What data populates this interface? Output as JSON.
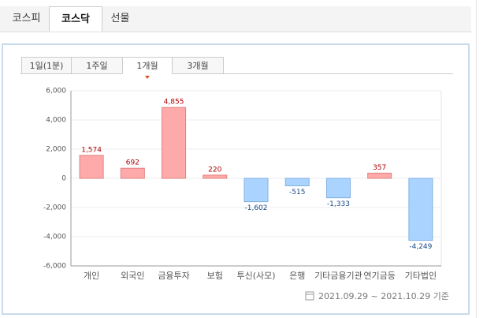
{
  "market_tabs": [
    "코스피",
    "코스닥",
    "선물"
  ],
  "active_market_tab": 1,
  "period_tabs": [
    "1일(1분)",
    "1주일",
    "1개월",
    "3개월"
  ],
  "active_period_tab": 2,
  "chart_data": {
    "type": "bar",
    "categories": [
      "개인",
      "외국인",
      "금융투자",
      "보험",
      "투신(사모)",
      "은행",
      "기타금융기관",
      "연기금등",
      "기타법인"
    ],
    "values": [
      1574,
      692,
      4855,
      220,
      -1602,
      -515,
      -1333,
      357,
      -4249
    ],
    "value_labels": [
      "1,574",
      "692",
      "4,855",
      "220",
      "-1,602",
      "-515",
      "-1,333",
      "357",
      "-4,249"
    ],
    "positive_color": "#ffaaaa",
    "negative_color": "#aad4ff",
    "ylim": [
      -6000,
      6000
    ],
    "yticks": [
      {
        "value": -6000,
        "label": "-6,000"
      },
      {
        "value": -4000,
        "label": "-4,000"
      },
      {
        "value": -2000,
        "label": "-2,000"
      },
      0,
      {
        "value": 2000,
        "label": "2,000"
      },
      {
        "value": 4000,
        "label": "4,000"
      },
      {
        "value": 6000,
        "label": "6,000"
      }
    ],
    "grid": true
  },
  "footer": "2021.09.29 ~ 2021.10.29 기준"
}
